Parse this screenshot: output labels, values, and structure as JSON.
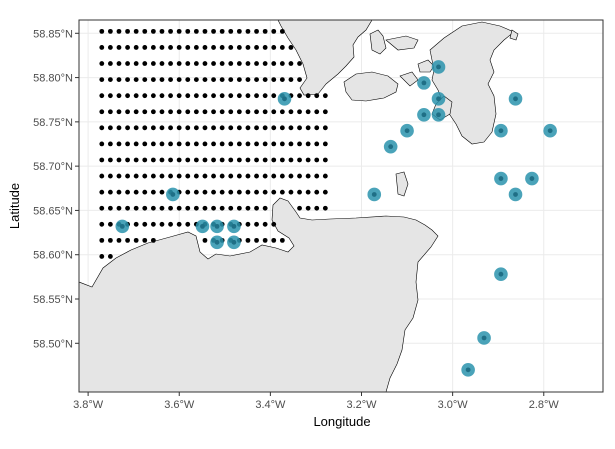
{
  "chart_data": {
    "type": "scatter",
    "title": "",
    "xlabel": "Longitude",
    "ylabel": "Latitude",
    "xlim": [
      -3.82,
      -2.67
    ],
    "ylim": [
      58.445,
      58.865
    ],
    "grid": true,
    "legend": "none",
    "x_ticks": [
      {
        "value": -3.8,
        "label": "3.8°W"
      },
      {
        "value": -3.6,
        "label": "3.6°W"
      },
      {
        "value": -3.4,
        "label": "3.4°W"
      },
      {
        "value": -3.2,
        "label": "3.2°W"
      },
      {
        "value": -3.0,
        "label": "3.0°W"
      },
      {
        "value": -2.8,
        "label": "2.8°W"
      }
    ],
    "y_ticks": [
      {
        "value": 58.5,
        "label": "58.50°N"
      },
      {
        "value": 58.55,
        "label": "58.55°N"
      },
      {
        "value": 58.6,
        "label": "58.60°N"
      },
      {
        "value": 58.65,
        "label": "58.65°N"
      },
      {
        "value": 58.7,
        "label": "58.70°N"
      },
      {
        "value": 58.75,
        "label": "58.75°N"
      },
      {
        "value": 58.8,
        "label": "58.80°N"
      },
      {
        "value": 58.85,
        "label": "58.85°N"
      }
    ],
    "grid_points": {
      "lon_start": -3.77,
      "lon_step": 0.01887,
      "lon_count": 27,
      "lat_start": 58.471,
      "lat_step": 0.01815,
      "lat_count": 22
    },
    "highlighted_sites": [
      {
        "lon": -3.725,
        "lat": 58.632
      },
      {
        "lon": -3.614,
        "lat": 58.668
      },
      {
        "lon": -3.549,
        "lat": 58.632
      },
      {
        "lon": -3.517,
        "lat": 58.632
      },
      {
        "lon": -3.517,
        "lat": 58.614
      },
      {
        "lon": -3.48,
        "lat": 58.632
      },
      {
        "lon": -3.48,
        "lat": 58.614
      },
      {
        "lon": -3.369,
        "lat": 58.776
      },
      {
        "lon": -3.172,
        "lat": 58.668
      },
      {
        "lon": -3.136,
        "lat": 58.722
      },
      {
        "lon": -3.1,
        "lat": 58.74
      },
      {
        "lon": -3.063,
        "lat": 58.794
      },
      {
        "lon": -3.063,
        "lat": 58.758
      },
      {
        "lon": -3.031,
        "lat": 58.812
      },
      {
        "lon": -3.031,
        "lat": 58.776
      },
      {
        "lon": -3.031,
        "lat": 58.758
      },
      {
        "lon": -2.931,
        "lat": 58.506
      },
      {
        "lon": -2.966,
        "lat": 58.47
      },
      {
        "lon": -2.894,
        "lat": 58.74
      },
      {
        "lon": -2.894,
        "lat": 58.686
      },
      {
        "lon": -2.894,
        "lat": 58.578
      },
      {
        "lon": -2.862,
        "lat": 58.776
      },
      {
        "lon": -2.862,
        "lat": 58.668
      },
      {
        "lon": -2.826,
        "lat": 58.686
      },
      {
        "lon": -2.786,
        "lat": 58.74
      }
    ],
    "colors": {
      "land": "#e5e5e5",
      "coast": "#000000",
      "grid_point": "#000000",
      "site_fill": "#2a93ad",
      "site_core": "#1f6f86",
      "panel_border": "#333333",
      "gridline": "#ebebeb"
    }
  }
}
